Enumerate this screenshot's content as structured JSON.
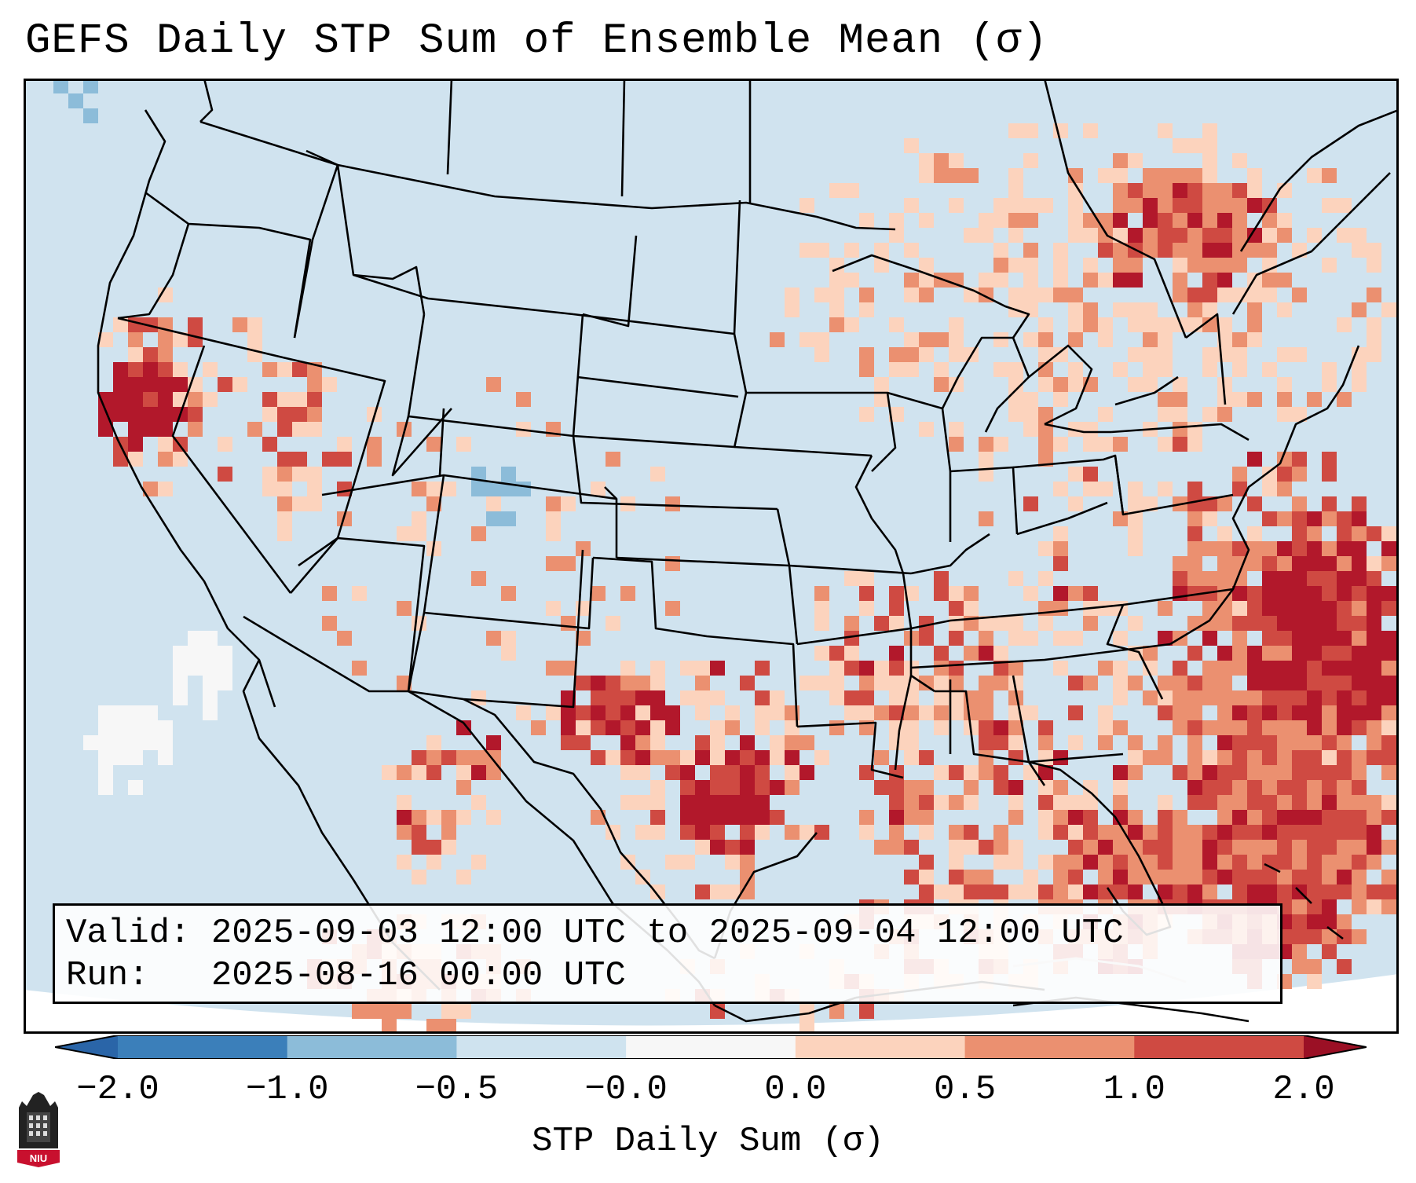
{
  "title": "GEFS Daily STP Sum of Ensemble Mean (σ)",
  "info": {
    "valid": "Valid: 2025-09-03 12:00 UTC to 2025-09-04 12:00 UTC",
    "run": "Run:   2025-08-16 00:00 UTC"
  },
  "colorbar": {
    "label": "STP Daily Sum (σ)",
    "ticks": [
      "−2.0",
      "−1.0",
      "−0.5",
      "−0.0",
      "0.0",
      "0.5",
      "1.0",
      "2.0"
    ],
    "colors": [
      "#3b7fba",
      "#8cbcd9",
      "#cfe3ef",
      "#f7f7f7",
      "#fcd3bd",
      "#eb9070",
      "#cf4a42",
      "#b2182b"
    ],
    "under_color": "#2a65a8",
    "over_color": "#9b1025"
  },
  "map": {
    "background": "#d0e3ef",
    "stp_hotspots": [
      {
        "region": "Northern California",
        "level": 2.0
      },
      {
        "region": "Western Texas",
        "level": 2.0
      },
      {
        "region": "Central Texas",
        "level": 2.0
      },
      {
        "region": "Southern Florida",
        "level": 2.0
      },
      {
        "region": "Western Atlantic",
        "level": 2.0
      },
      {
        "region": "Ontario",
        "level": 1.0
      }
    ]
  },
  "logo": {
    "text": "NIU",
    "color": "#c8102e"
  }
}
